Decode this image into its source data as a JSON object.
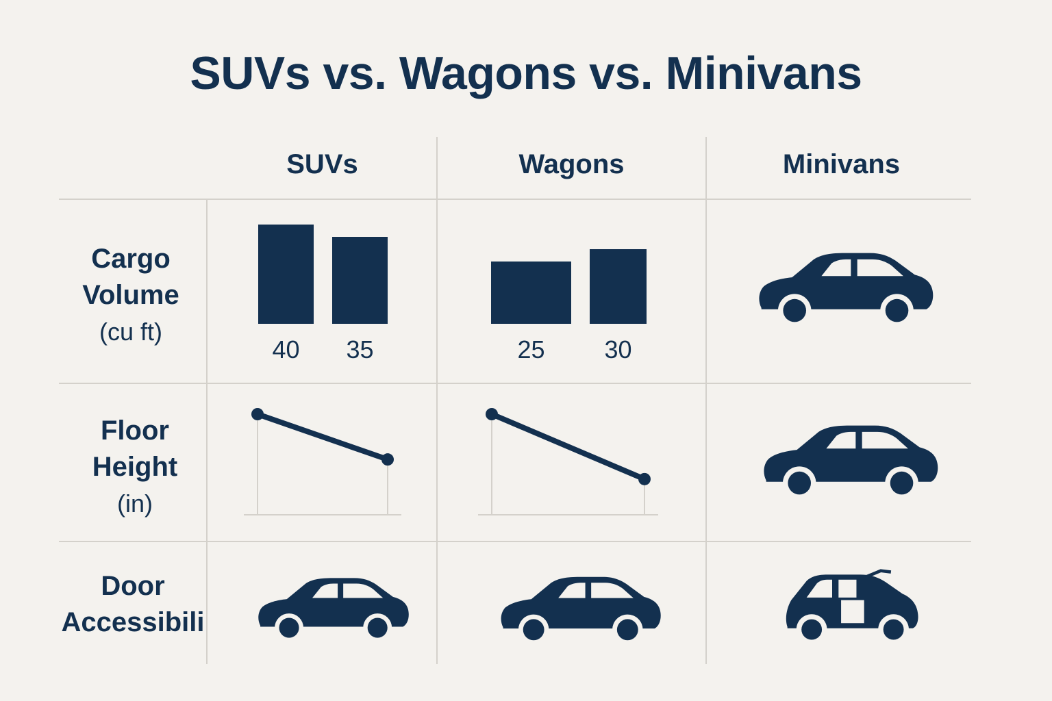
{
  "title": "SUVs vs. Wagons vs. Minivans",
  "columns": [
    "SUVs",
    "Wagons",
    "Minivans"
  ],
  "rows": {
    "cargo": {
      "line1": "Cargo",
      "line2": "Volume",
      "unit": "(cu ft)"
    },
    "floor": {
      "line1": "Floor",
      "line2": "Height",
      "unit": "(in)"
    },
    "door": {
      "line1": "Door",
      "line2": "Accessibili"
    }
  },
  "colors": {
    "ink": "#13304f",
    "grid": "#d4d1cb",
    "background": "#f4f2ee"
  },
  "icons": {
    "minivan_cargo": "car-icon",
    "minivan_floor": "car-icon",
    "suv_door": "car-icon",
    "wagon_door": "car-icon",
    "minivan_door": "car-open-door-icon"
  },
  "chart_data": [
    {
      "type": "bar",
      "categories": [
        "SUVs",
        "Wagons"
      ],
      "series_values": {
        "SUVs": [
          40,
          35
        ],
        "Wagons": [
          25,
          30
        ]
      },
      "labels": {
        "SUVs": [
          "40",
          "35"
        ],
        "Wagons": [
          "25",
          "30"
        ]
      },
      "ylabel": "Cargo Volume (cu ft)",
      "ylim": [
        0,
        45
      ]
    },
    {
      "type": "line",
      "categories": [
        "SUVs",
        "Wagons"
      ],
      "note_values": "relative slope only, no numeric labels shown",
      "series_trend": {
        "SUVs": [
          1.0,
          0.55
        ],
        "Wagons": [
          1.0,
          0.45
        ]
      },
      "ylabel": "Floor Height (in)"
    }
  ]
}
